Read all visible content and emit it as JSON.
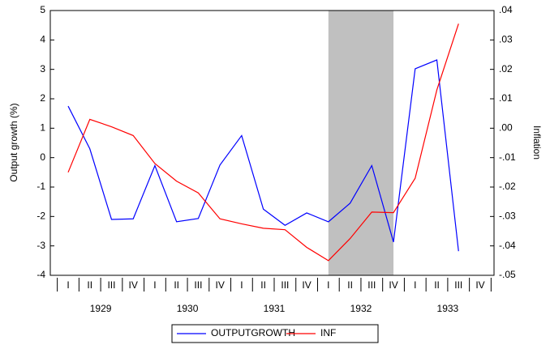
{
  "chart_data": {
    "type": "line",
    "categories": [
      "I",
      "II",
      "III",
      "IV",
      "I",
      "II",
      "III",
      "IV",
      "I",
      "II",
      "III",
      "IV",
      "I",
      "II",
      "III",
      "IV",
      "I",
      "II",
      "III",
      "IV"
    ],
    "year_labels": [
      "1929",
      "1930",
      "1931",
      "1932",
      "1933"
    ],
    "y_label": "Output growth (%)",
    "y2_label": "Inflation",
    "ylim": [
      -4,
      5
    ],
    "yticks": [
      -4,
      -3,
      -2,
      -1,
      0,
      1,
      2,
      3,
      4,
      5
    ],
    "y2lim": [
      -0.05,
      0.04
    ],
    "y2ticks": [
      {
        "value": -0.05,
        "label": "-.05"
      },
      {
        "value": -0.04,
        "label": "-.04"
      },
      {
        "value": -0.03,
        "label": "-.03"
      },
      {
        "value": -0.02,
        "label": "-.02"
      },
      {
        "value": -0.01,
        "label": "-.01"
      },
      {
        "value": 0,
        "label": ".00"
      },
      {
        "value": 0.01,
        "label": ".01"
      },
      {
        "value": 0.02,
        "label": ".02"
      },
      {
        "value": 0.03,
        "label": ".03"
      },
      {
        "value": 0.04,
        "label": ".04"
      }
    ],
    "shaded_range": [
      12,
      15
    ],
    "shade_color": "#c0c0c0",
    "legend": "bottom",
    "series": [
      {
        "name": "OUTPUTGROWTH",
        "color": "#0000ff",
        "values": [
          1.75,
          0.3,
          -2.1,
          -2.08,
          -0.27,
          -2.18,
          -2.07,
          -0.25,
          0.75,
          -1.75,
          -2.3,
          -1.88,
          -2.18,
          -1.55,
          -0.27,
          -2.87,
          3.02,
          3.32,
          -3.18,
          null
        ]
      },
      {
        "name": "INF",
        "color": "#ff0000",
        "axis": "y2",
        "values": [
          -0.015,
          0.003,
          0.0005,
          -0.0025,
          -0.012,
          -0.018,
          -0.022,
          -0.0308,
          -0.0325,
          -0.034,
          -0.0345,
          -0.0405,
          -0.045,
          -0.0375,
          -0.0285,
          -0.0287,
          -0.017,
          0.013,
          0.0355,
          null
        ]
      }
    ]
  }
}
